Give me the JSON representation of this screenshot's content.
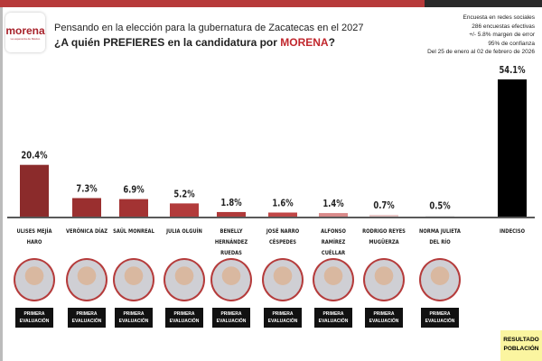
{
  "logo": {
    "word": "morena",
    "subtitle": "La esperanza de México"
  },
  "header": {
    "line1": "Pensando en la elección para la gubernatura de Zacatecas en el 2027",
    "line2_pre": "¿A quién PREFIERES en la candidatura por ",
    "line2_party": "MORENA",
    "line2_post": "?"
  },
  "meta": [
    "Encuesta en redes sociales",
    "286 encuestas efectivas",
    "+/- 5.8% margen de error",
    "95% de confianza",
    "Del 25 de enero al 02 de febrero de 2026"
  ],
  "badge_label": [
    "PRIMERA",
    "EVALUACIÓN"
  ],
  "result_box": [
    "RESULTADO",
    "POBLACIÓN"
  ],
  "colors": {
    "bars": [
      "#8b2b2b",
      "#9a2f2f",
      "#a33333",
      "#b23b3b",
      "#b03a3a",
      "#c04646",
      "#d98a8a",
      "#e8c8c8",
      "#eeeeee",
      "#000000"
    ],
    "accent": "#c1272d"
  },
  "chart_data": {
    "type": "bar",
    "title": "¿A quién PREFIERES en la candidatura por MORENA?",
    "categories": [
      "ULISES MEJÍA HARO",
      "VERÓNICA DÍAZ",
      "SAÚL MONREAL",
      "JULIA OLGUÍN",
      "BENELLY HERNÁNDEZ RUEDAS",
      "JOSÉ NARRO CÉSPEDES",
      "ALFONSO RAMÍREZ CUÉLLAR",
      "RODRIGO REYES MUGÜERZA",
      "NORMA JULIETA DEL RÍO",
      "INDECISO"
    ],
    "values": [
      20.4,
      7.3,
      6.9,
      5.2,
      1.8,
      1.6,
      1.4,
      0.7,
      0.5,
      54.1
    ],
    "labels": [
      "20.4%",
      "7.3%",
      "6.9%",
      "5.2%",
      "1.8%",
      "1.6%",
      "1.4%",
      "0.7%",
      "0.5%",
      "54.1%"
    ],
    "ylim": [
      0,
      55
    ],
    "xlabel": "",
    "ylabel": "",
    "grid": false
  }
}
